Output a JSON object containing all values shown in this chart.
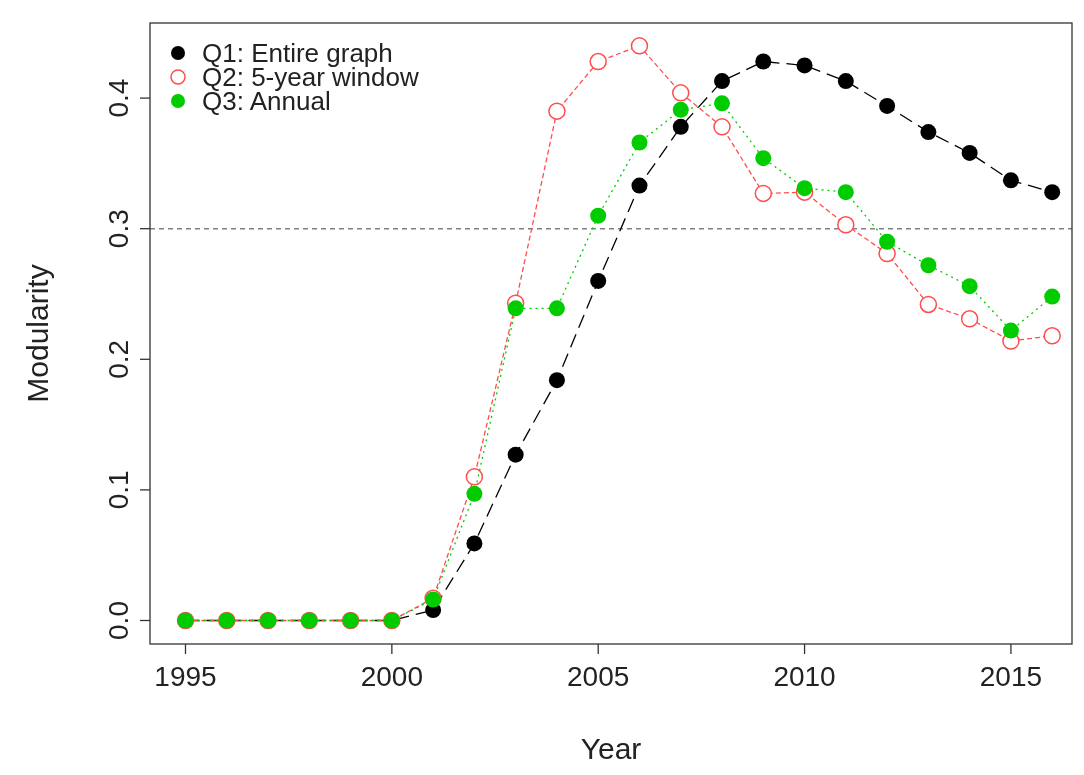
{
  "chart_data": {
    "type": "line",
    "xlabel": "Year",
    "ylabel": "Modularity",
    "x": [
      1995,
      1996,
      1997,
      1998,
      1999,
      2000,
      2001,
      2002,
      2003,
      2004,
      2005,
      2006,
      2007,
      2008,
      2009,
      2010,
      2011,
      2012,
      2013,
      2014,
      2015,
      2016
    ],
    "xlim": [
      1994.14,
      2016.48
    ],
    "ylim": [
      -0.018,
      0.4575
    ],
    "xticks": [
      1995,
      2000,
      2005,
      2010,
      2015
    ],
    "yticks": [
      {
        "value": 0,
        "label": "0.0"
      },
      0.1,
      0.2,
      0.3,
      0.4
    ],
    "legend": "top left",
    "grid": false,
    "ref_lines": [
      {
        "axis": "y",
        "value": 0.3,
        "color": "#808080",
        "line_style": "dashed"
      }
    ],
    "series": [
      {
        "name": "Q1: Entire graph",
        "color": "#000000",
        "marker": "circle",
        "line_style": "dashed",
        "values": [
          0,
          0,
          0,
          0,
          0,
          0,
          0.008,
          0.059,
          0.127,
          0.184,
          0.26,
          0.333,
          0.378,
          0.413,
          0.428,
          0.425,
          0.413,
          0.394,
          0.374,
          0.358,
          0.337,
          0.328
        ]
      },
      {
        "name": "Q2: 5-year window",
        "color": "#ff4d4d",
        "marker": "circle",
        "line_style": "dashed",
        "values": [
          0,
          0,
          0,
          0,
          0,
          0,
          0.017,
          0.11,
          0.243,
          0.39,
          0.428,
          0.44,
          0.404,
          0.378,
          0.327,
          0.328,
          0.303,
          0.281,
          0.242,
          0.231,
          0.214,
          0.218
        ]
      },
      {
        "name": "Q3: Annual",
        "color": "#00cc00",
        "marker": "circle",
        "line_style": "dotted",
        "values": [
          0,
          0,
          0,
          0,
          0,
          0,
          0.016,
          0.097,
          0.239,
          0.239,
          0.31,
          0.366,
          0.391,
          0.396,
          0.354,
          0.331,
          0.328,
          0.29,
          0.272,
          0.256,
          0.222,
          0.248
        ]
      }
    ]
  }
}
